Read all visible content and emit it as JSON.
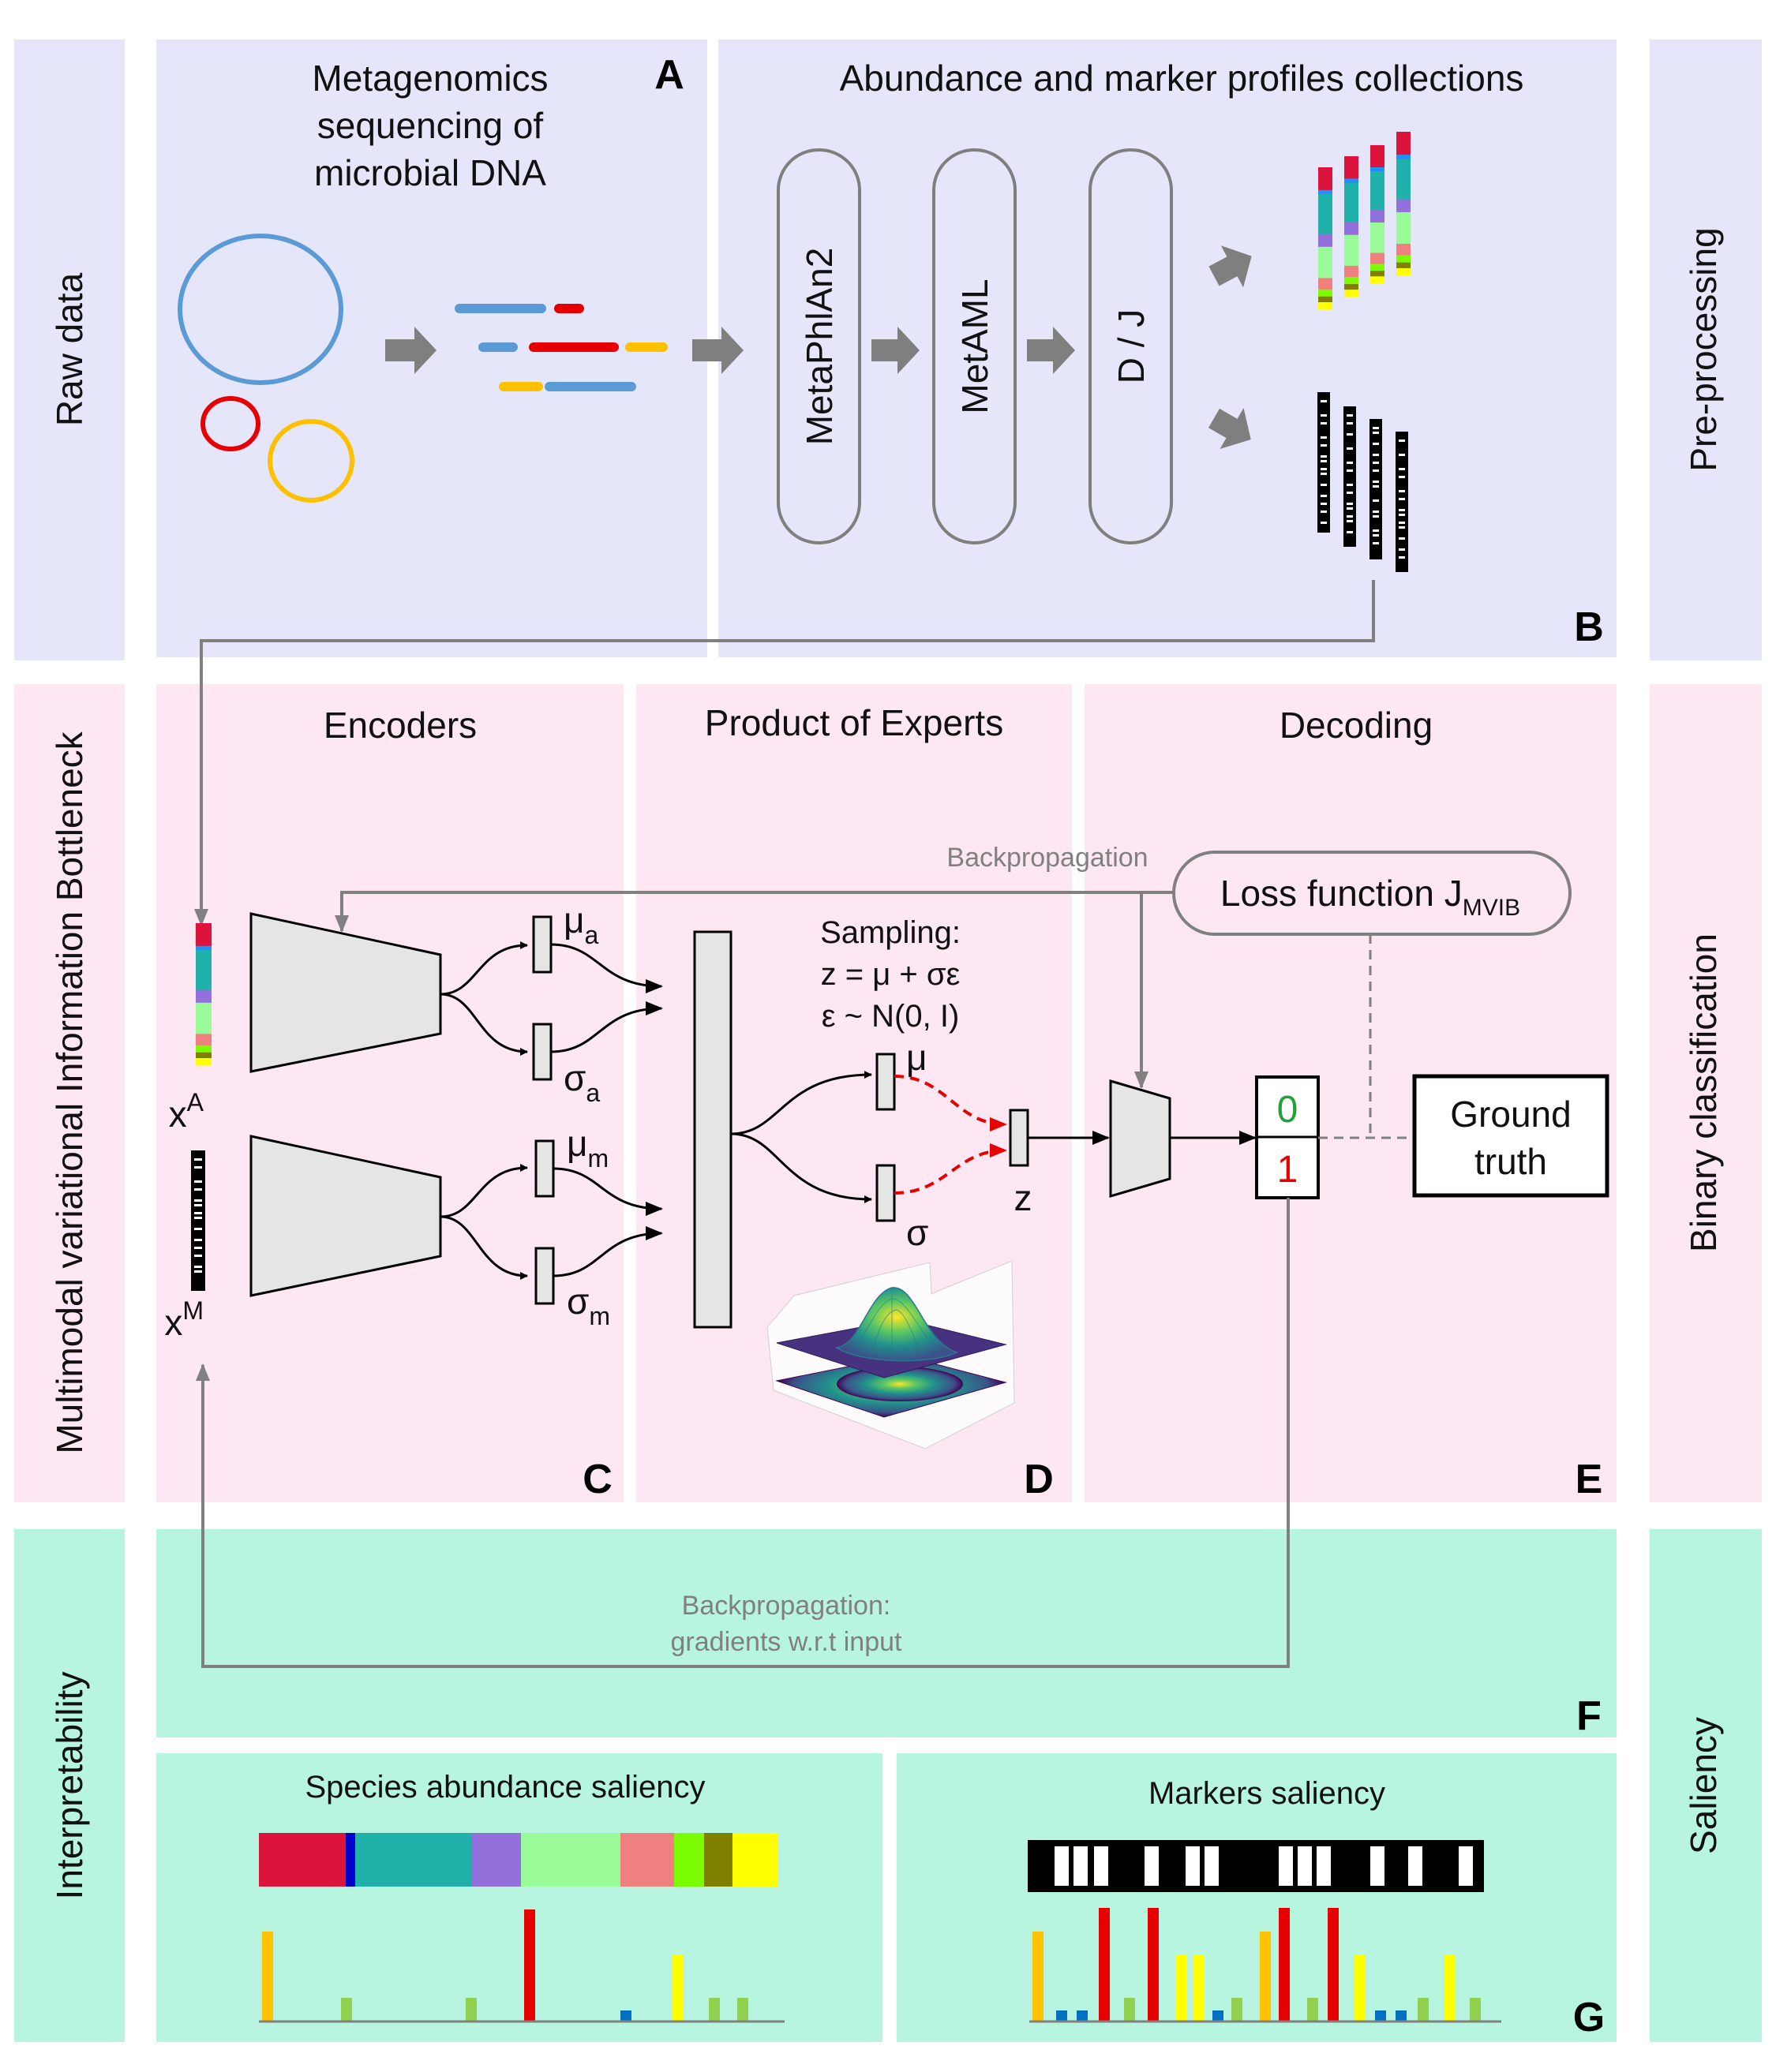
{
  "rows": {
    "raw": {
      "left": "Raw data",
      "right": "Pre-processing"
    },
    "mvib": {
      "left": "Multimodal variational Information Bottleneck",
      "right": "Binary classification"
    },
    "interp": {
      "left": "Interpretability",
      "right": "Saliency"
    }
  },
  "panelA": {
    "letter": "A",
    "title": [
      "Metagenomics",
      "sequencing of",
      "microbial DNA"
    ]
  },
  "panelB": {
    "letter": "B",
    "title": "Abundance and marker profiles collections",
    "steps": [
      "MetaPhlAn2",
      "MetAML",
      "D / J"
    ]
  },
  "panelC": {
    "letter": "C",
    "title": "Encoders",
    "inputA": {
      "base": "x",
      "sup": "A"
    },
    "inputM": {
      "base": "x",
      "sup": "M"
    },
    "mu_a": {
      "base": "μ",
      "sub": "a"
    },
    "sigma_a": {
      "base": "σ",
      "sub": "a"
    },
    "mu_m": {
      "base": "μ",
      "sub": "m"
    },
    "sigma_m": {
      "base": "σ",
      "sub": "m"
    }
  },
  "panelD": {
    "letter": "D",
    "title": "Product of Experts",
    "sampling": [
      "Sampling:",
      "z = μ + σε",
      "ε ~ N(0, I)"
    ],
    "mu": "μ",
    "sigma": "σ",
    "z": "z"
  },
  "panelE": {
    "letter": "E",
    "title": "Decoding",
    "backprop": "Backpropagation",
    "loss": {
      "base": "Loss function J",
      "sub": "MVIB"
    },
    "out0": "0",
    "out1": "1",
    "ground": [
      "Ground",
      "truth"
    ]
  },
  "panelF": {
    "letter": "F",
    "backprop": [
      "Backpropagation:",
      "gradients w.r.t input"
    ]
  },
  "panelG": {
    "letter": "G",
    "species_title": "Species abundance saliency",
    "markers_title": "Markers saliency"
  },
  "colors": {
    "purple_bg": "#E6E6FA",
    "pink_bg": "#FDE7F2",
    "green_bg": "#B8F5E0",
    "arrow_gray": "#7F7F7F",
    "red": "#E60000",
    "green_out": "#22A03A"
  }
}
